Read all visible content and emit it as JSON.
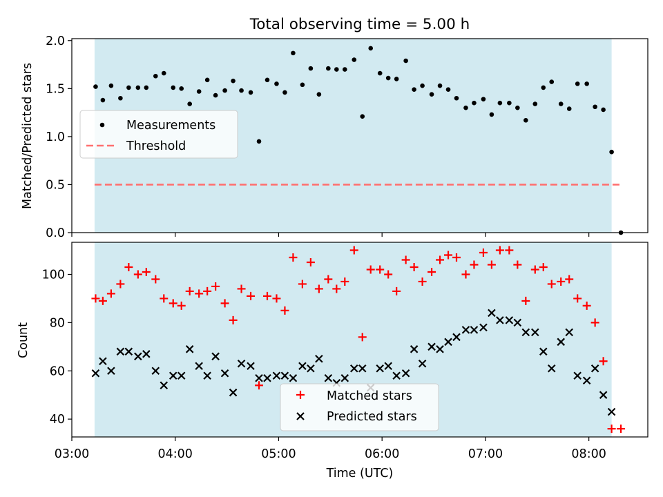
{
  "title": "Total observing time = 5.00 h",
  "colors": {
    "span": "#add8e6",
    "measurements": "#000000",
    "threshold": "#ff7070",
    "matched": "#ff0000",
    "predicted": "#000000"
  },
  "chart_data": [
    {
      "type": "scatter",
      "ylabel": "Matched/Predicted stars",
      "xlim": [
        3.0,
        8.57
      ],
      "ylim": [
        0,
        2.02
      ],
      "yticks": [
        0.0,
        0.5,
        1.0,
        1.5,
        2.0
      ],
      "ytick_labels": [
        "0.0",
        "0.5",
        "1.0",
        "1.5",
        "2.0"
      ],
      "observing_span": [
        3.22,
        8.22
      ],
      "legend_position": "center-left",
      "threshold": {
        "name": "Threshold",
        "value": 0.5,
        "x_range": [
          3.22,
          8.32
        ]
      },
      "series": [
        {
          "name": "Measurements",
          "marker": "dot",
          "x": [
            3.23,
            3.3,
            3.38,
            3.47,
            3.55,
            3.64,
            3.72,
            3.81,
            3.89,
            3.98,
            4.06,
            4.14,
            4.23,
            4.31,
            4.39,
            4.48,
            4.56,
            4.64,
            4.73,
            4.81,
            4.89,
            4.98,
            5.06,
            5.14,
            5.23,
            5.31,
            5.39,
            5.48,
            5.56,
            5.64,
            5.73,
            5.81,
            5.89,
            5.98,
            6.06,
            6.14,
            6.23,
            6.31,
            6.39,
            6.48,
            6.56,
            6.64,
            6.72,
            6.81,
            6.89,
            6.98,
            7.06,
            7.14,
            7.23,
            7.31,
            7.39,
            7.48,
            7.56,
            7.64,
            7.73,
            7.81,
            7.89,
            7.98,
            8.06,
            8.14,
            8.22,
            8.31
          ],
          "y": [
            1.52,
            1.38,
            1.53,
            1.4,
            1.51,
            1.51,
            1.51,
            1.63,
            1.66,
            1.51,
            1.5,
            1.34,
            1.47,
            1.59,
            1.43,
            1.48,
            1.58,
            1.48,
            1.46,
            0.95,
            1.59,
            1.55,
            1.46,
            1.87,
            1.54,
            1.71,
            1.44,
            1.71,
            1.7,
            1.7,
            1.8,
            1.21,
            1.92,
            1.66,
            1.61,
            1.6,
            1.79,
            1.49,
            1.53,
            1.44,
            1.53,
            1.49,
            1.4,
            1.3,
            1.35,
            1.39,
            1.23,
            1.35,
            1.35,
            1.3,
            1.17,
            1.34,
            1.51,
            1.57,
            1.34,
            1.29,
            1.55,
            1.55,
            1.31,
            1.28,
            0.84,
            0.0
          ]
        }
      ]
    },
    {
      "type": "scatter",
      "ylabel": "Count",
      "xlabel": "Time (UTC)",
      "xlim": [
        3.0,
        8.57
      ],
      "ylim": [
        32.6,
        113.3
      ],
      "xticks": [
        3,
        4,
        5,
        6,
        7,
        8
      ],
      "xtick_labels": [
        "03:00",
        "04:00",
        "05:00",
        "06:00",
        "07:00",
        "08:00"
      ],
      "yticks": [
        40,
        60,
        80,
        100
      ],
      "ytick_labels": [
        "40",
        "60",
        "80",
        "100"
      ],
      "observing_span": [
        3.22,
        8.22
      ],
      "legend_position": "bottom-center",
      "series": [
        {
          "name": "Matched stars",
          "marker": "plus",
          "x": [
            3.23,
            3.3,
            3.38,
            3.47,
            3.55,
            3.64,
            3.72,
            3.81,
            3.89,
            3.98,
            4.06,
            4.14,
            4.23,
            4.31,
            4.39,
            4.48,
            4.56,
            4.64,
            4.73,
            4.81,
            4.89,
            4.98,
            5.06,
            5.14,
            5.23,
            5.31,
            5.39,
            5.48,
            5.56,
            5.64,
            5.73,
            5.81,
            5.89,
            5.98,
            6.06,
            6.14,
            6.23,
            6.31,
            6.39,
            6.48,
            6.56,
            6.64,
            6.72,
            6.81,
            6.89,
            6.98,
            7.06,
            7.14,
            7.23,
            7.31,
            7.39,
            7.48,
            7.56,
            7.64,
            7.73,
            7.81,
            7.89,
            7.98,
            8.06,
            8.14,
            8.22,
            8.31
          ],
          "y": [
            90,
            89,
            92,
            96,
            103,
            100,
            101,
            98,
            90,
            88,
            87,
            93,
            92,
            93,
            95,
            88,
            81,
            94,
            91,
            54,
            91,
            90,
            85,
            107,
            96,
            105,
            94,
            98,
            94,
            97,
            110,
            74,
            102,
            102,
            100,
            93,
            106,
            103,
            97,
            101,
            106,
            108,
            107,
            100,
            104,
            109,
            104,
            110,
            110,
            104,
            89,
            102,
            103,
            96,
            97,
            98,
            90,
            87,
            80,
            64,
            36,
            36
          ]
        },
        {
          "name": "Predicted stars",
          "marker": "x",
          "x": [
            3.23,
            3.3,
            3.38,
            3.47,
            3.55,
            3.64,
            3.72,
            3.81,
            3.89,
            3.98,
            4.06,
            4.14,
            4.23,
            4.31,
            4.39,
            4.48,
            4.56,
            4.64,
            4.73,
            4.81,
            4.89,
            4.98,
            5.06,
            5.14,
            5.23,
            5.31,
            5.39,
            5.48,
            5.56,
            5.64,
            5.73,
            5.81,
            5.89,
            5.98,
            6.06,
            6.14,
            6.23,
            6.31,
            6.39,
            6.48,
            6.56,
            6.64,
            6.72,
            6.81,
            6.89,
            6.98,
            7.06,
            7.14,
            7.23,
            7.31,
            7.39,
            7.48,
            7.56,
            7.64,
            7.73,
            7.81,
            7.89,
            7.98,
            8.06,
            8.14,
            8.22
          ],
          "y": [
            59,
            64,
            60,
            68,
            68,
            66,
            67,
            60,
            54,
            58,
            58,
            69,
            62,
            58,
            66,
            59,
            51,
            63,
            62,
            57,
            57,
            58,
            58,
            57,
            62,
            61,
            65,
            57,
            55,
            57,
            61,
            61,
            53,
            61,
            62,
            58,
            59,
            69,
            63,
            70,
            69,
            72,
            74,
            77,
            77,
            78,
            84,
            81,
            81,
            80,
            76,
            76,
            68,
            61,
            72,
            76,
            58,
            56,
            61,
            50,
            43
          ]
        }
      ]
    }
  ]
}
